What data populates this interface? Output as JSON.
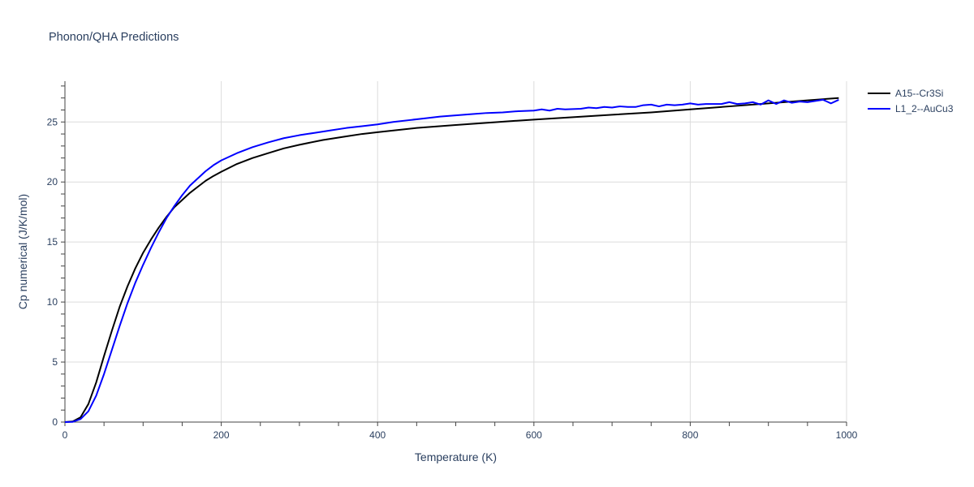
{
  "chart_data": {
    "type": "line",
    "title": "Phonon/QHA Predictions",
    "xlabel": "Temperature (K)",
    "ylabel": "Cp numerical (J/K/mol)",
    "xlim": [
      0,
      1000
    ],
    "ylim": [
      0,
      28.4
    ],
    "xticks": [
      0,
      200,
      400,
      600,
      800,
      1000
    ],
    "xtick_labels": [
      "0",
      "200",
      "400",
      "600",
      "800",
      "1000"
    ],
    "yticks": [
      0,
      5,
      10,
      15,
      20,
      25
    ],
    "ytick_labels": [
      "0",
      "5",
      "10",
      "15",
      "20",
      "25"
    ],
    "grid": true,
    "legend_position": "top-right",
    "series": [
      {
        "name": "A15--Cr3Si",
        "color": "#000000",
        "x": [
          0,
          10,
          20,
          30,
          40,
          50,
          60,
          70,
          80,
          90,
          100,
          110,
          120,
          130,
          140,
          150,
          160,
          170,
          180,
          190,
          200,
          220,
          240,
          260,
          280,
          300,
          330,
          360,
          380,
          400,
          450,
          500,
          550,
          600,
          650,
          700,
          750,
          800,
          850,
          900,
          950,
          990
        ],
        "y": [
          0,
          0.05,
          0.4,
          1.5,
          3.3,
          5.5,
          7.6,
          9.6,
          11.3,
          12.8,
          14.1,
          15.2,
          16.2,
          17.1,
          17.9,
          18.5,
          19.1,
          19.6,
          20.1,
          20.5,
          20.85,
          21.5,
          22.0,
          22.4,
          22.8,
          23.1,
          23.5,
          23.8,
          24.0,
          24.15,
          24.5,
          24.75,
          24.98,
          25.2,
          25.4,
          25.6,
          25.8,
          26.05,
          26.3,
          26.55,
          26.8,
          27.0
        ]
      },
      {
        "name": "L1_2--AuCu3",
        "color": "#0000ff",
        "x": [
          0,
          10,
          20,
          30,
          40,
          50,
          60,
          70,
          80,
          90,
          100,
          110,
          120,
          130,
          140,
          150,
          160,
          170,
          180,
          190,
          200,
          220,
          240,
          260,
          280,
          300,
          320,
          340,
          360,
          380,
          400,
          420,
          440,
          460,
          480,
          500,
          520,
          540,
          560,
          580,
          600,
          610,
          620,
          630,
          640,
          660,
          670,
          680,
          690,
          700,
          710,
          720,
          730,
          740,
          750,
          760,
          770,
          780,
          790,
          800,
          810,
          820,
          830,
          840,
          850,
          860,
          870,
          880,
          890,
          900,
          910,
          920,
          930,
          940,
          950,
          960,
          970,
          980,
          990
        ],
        "y": [
          0,
          0.02,
          0.25,
          0.9,
          2.2,
          4.0,
          6.0,
          8.0,
          9.9,
          11.6,
          13.1,
          14.5,
          15.8,
          17.0,
          18.0,
          18.9,
          19.7,
          20.3,
          20.9,
          21.4,
          21.8,
          22.4,
          22.9,
          23.3,
          23.65,
          23.9,
          24.1,
          24.3,
          24.5,
          24.65,
          24.8,
          25.0,
          25.15,
          25.3,
          25.45,
          25.55,
          25.65,
          25.75,
          25.8,
          25.9,
          25.95,
          26.05,
          25.95,
          26.1,
          26.05,
          26.1,
          26.2,
          26.15,
          26.25,
          26.2,
          26.3,
          26.25,
          26.25,
          26.4,
          26.45,
          26.3,
          26.45,
          26.4,
          26.45,
          26.55,
          26.45,
          26.5,
          26.5,
          26.5,
          26.65,
          26.5,
          26.55,
          26.65,
          26.45,
          26.8,
          26.5,
          26.8,
          26.6,
          26.7,
          26.65,
          26.75,
          26.85,
          26.55,
          26.85
        ]
      }
    ]
  }
}
